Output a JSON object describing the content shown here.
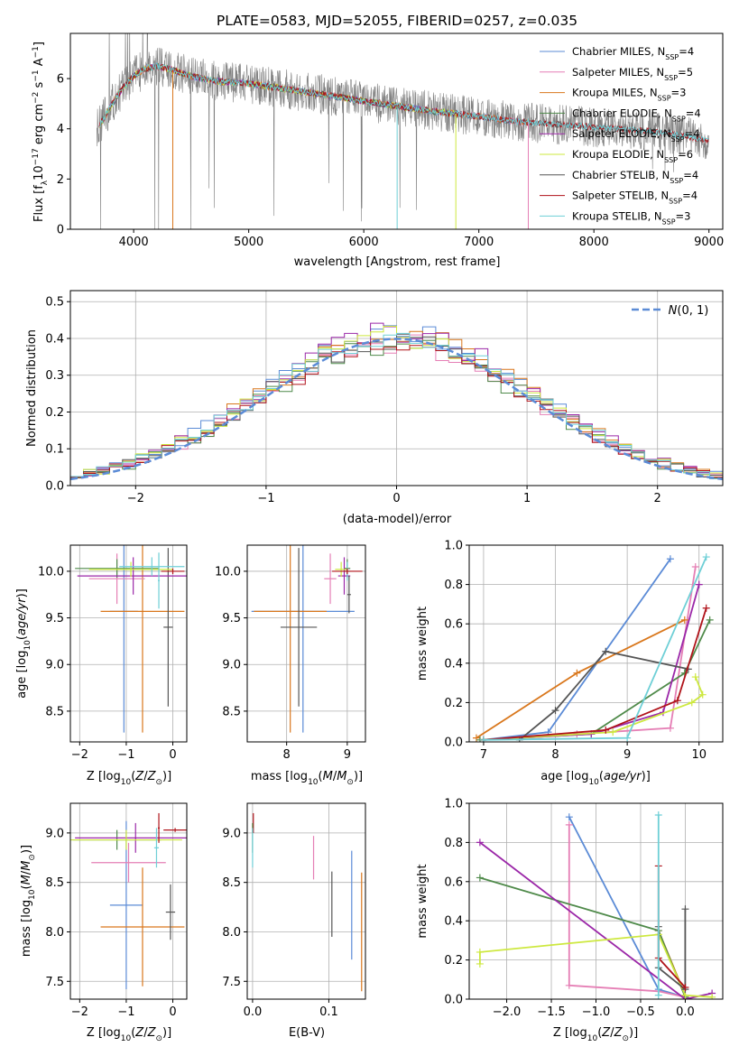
{
  "figure_title": "PLATE=0583, MJD=52055, FIBERID=0257, z=0.035",
  "colors": {
    "chabrier_miles": "#5b8bd6",
    "salpeter_miles": "#e57fb5",
    "kroupa_miles": "#d9771c",
    "chabrier_elodie": "#4f8a4a",
    "salpeter_elodie": "#9b27a8",
    "kroupa_elodie": "#cde83e",
    "chabrier_stelib": "#555555",
    "salpeter_stelib": "#b0131a",
    "kroupa_stelib": "#6ecfd6",
    "data": "#808080",
    "normal": "#5b8bd6",
    "grid": "#b0b0b0"
  },
  "chart_data": [
    {
      "type": "line",
      "title": "PLATE=0583, MJD=52055, FIBERID=0257, z=0.035",
      "xlabel": "wavelength [Angstrom, rest frame]",
      "ylabel": "Flux [f_λ 10^-17 erg cm^-2 s^-1 A^-1]",
      "xlim": [
        3450,
        9120
      ],
      "ylim": [
        0,
        7.8
      ],
      "xticks": [
        4000,
        5000,
        6000,
        7000,
        8000,
        9000
      ],
      "yticks": [
        0,
        2,
        4,
        6
      ],
      "grid": false,
      "legend_position": "top-right",
      "legend": [
        {
          "key": "chabrier_miles",
          "base": "Chabrier MILES, N",
          "sub": "SSP",
          "suffix": "=4"
        },
        {
          "key": "salpeter_miles",
          "base": "Salpeter MILES, N",
          "sub": "SSP",
          "suffix": "=5"
        },
        {
          "key": "kroupa_miles",
          "base": "Kroupa MILES, N",
          "sub": "SSP",
          "suffix": "=3"
        },
        {
          "key": "chabrier_elodie",
          "base": "Chabrier ELODIE, N",
          "sub": "SSP",
          "suffix": "=4"
        },
        {
          "key": "salpeter_elodie",
          "base": "Salpeter ELODIE, N",
          "sub": "SSP",
          "suffix": "=4"
        },
        {
          "key": "kroupa_elodie",
          "base": "Kroupa ELODIE, N",
          "sub": "SSP",
          "suffix": "=6"
        },
        {
          "key": "chabrier_stelib",
          "base": "Chabrier STELIB, N",
          "sub": "SSP",
          "suffix": "=4"
        },
        {
          "key": "salpeter_stelib",
          "base": "Salpeter STELIB, N",
          "sub": "SSP",
          "suffix": "=4"
        },
        {
          "key": "kroupa_stelib",
          "base": "Kroupa STELIB, N",
          "sub": "SSP",
          "suffix": "=3"
        }
      ],
      "model_continuum": {
        "x": [
          3700,
          3800,
          3900,
          4000,
          4100,
          4200,
          4300,
          4500,
          4700,
          5000,
          5300,
          5600,
          6000,
          6300,
          6600,
          7000,
          7300,
          7600,
          7900,
          8200,
          8500,
          8800,
          9000
        ],
        "y": [
          4.1,
          4.9,
          5.6,
          6.1,
          6.4,
          6.5,
          6.4,
          6.1,
          5.9,
          5.8,
          5.6,
          5.4,
          5.1,
          4.9,
          4.7,
          4.5,
          4.3,
          4.2,
          4.1,
          4.0,
          3.9,
          3.7,
          3.5
        ]
      },
      "model_ranges": {
        "chabrier_miles": [
          3700,
          7430
        ],
        "salpeter_miles": [
          3700,
          7430
        ],
        "kroupa_miles": [
          3700,
          7430
        ],
        "chabrier_elodie": [
          3700,
          6800
        ],
        "salpeter_elodie": [
          3700,
          6800
        ],
        "kroupa_elodie": [
          3700,
          6800
        ],
        "chabrier_stelib": [
          3700,
          9000
        ],
        "salpeter_stelib": [
          3700,
          9000
        ],
        "kroupa_stelib": [
          3700,
          9000
        ]
      },
      "model_drops": [
        {
          "key": "kroupa_miles",
          "x": 4340
        },
        {
          "key": "kroupa_stelib",
          "x": 6290
        },
        {
          "key": "kroupa_elodie",
          "x": 6800
        },
        {
          "key": "salpeter_miles",
          "x": 7430
        }
      ]
    },
    {
      "type": "histogram",
      "xlabel": "(data-model)/error",
      "ylabel": "Normed distribution",
      "xlim": [
        -2.5,
        2.5
      ],
      "ylim": [
        0,
        0.53
      ],
      "xticks": [
        -2,
        -1,
        0,
        1,
        2
      ],
      "yticks": [
        0.0,
        0.1,
        0.2,
        0.3,
        0.4,
        0.5
      ],
      "grid": true,
      "legend_position": "top-right",
      "legend": [
        {
          "label": "N(0, 1)",
          "style": "dashed",
          "key": "normal"
        }
      ],
      "bin_width": 0.1,
      "spread": [
        0.04,
        -0.03,
        0.03,
        -0.05,
        0.05,
        0.02,
        -0.02,
        -0.04,
        0.01
      ]
    },
    {
      "type": "errorbar",
      "xlabel": "Z [log10(Z/Z⊙)]",
      "ylabel": "age [log10(age/yr)]",
      "xlim": [
        -2.2,
        0.3
      ],
      "ylim": [
        8.17,
        10.28
      ],
      "xticks": [
        -2,
        -1,
        0
      ],
      "yticks": [
        8.5,
        9.0,
        9.5,
        10.0
      ],
      "grid": true,
      "points": [
        {
          "key": "chabrier_miles",
          "x": -1.05,
          "xerr": 0.3,
          "y": 9.57,
          "yerr": 1.3
        },
        {
          "key": "kroupa_miles",
          "x": -0.65,
          "xerr": 0.9,
          "y": 9.57,
          "yerr": 1.3
        },
        {
          "key": "chabrier_stelib",
          "x": -0.1,
          "xerr": 0.1,
          "y": 9.4,
          "yerr": 0.85
        },
        {
          "key": "salpeter_miles",
          "x": -1.2,
          "xerr": 0.6,
          "y": 9.92,
          "yerr": 0.27
        },
        {
          "key": "chabrier_elodie",
          "x": -1.2,
          "xerr": 0.9,
          "y": 10.03,
          "yerr": 0.1
        },
        {
          "key": "salpeter_elodie",
          "x": -0.85,
          "xerr": 1.2,
          "y": 9.95,
          "yerr": 0.2
        },
        {
          "key": "kroupa_elodie",
          "x": -0.9,
          "xerr": 0.9,
          "y": 10.02,
          "yerr": 0.08
        },
        {
          "key": "kroupa_stelib",
          "x": -0.45,
          "xerr": 0.7,
          "y": 10.05,
          "yerr": 0.1
        },
        {
          "key": "salpeter_stelib",
          "x": 0.0,
          "xerr": 0.25,
          "y": 10.0,
          "yerr": 0.03
        },
        {
          "key": "kroupa_stelib",
          "x": -0.3,
          "xerr": 0.02,
          "y": 9.9,
          "yerr": 0.3
        }
      ]
    },
    {
      "type": "errorbar",
      "xlabel": "mass [log10(M/M⊙)]",
      "ylabel": "",
      "xlim": [
        7.35,
        9.3
      ],
      "ylim": [
        8.17,
        10.28
      ],
      "xticks": [
        8,
        9
      ],
      "yticks": [
        8.5,
        9.0,
        9.5,
        10.0
      ],
      "grid": true,
      "points": [
        {
          "key": "chabrier_miles",
          "x": 8.27,
          "xerr": 0.85,
          "y": 9.57,
          "yerr": 1.3
        },
        {
          "key": "kroupa_miles",
          "x": 8.06,
          "xerr": 0.6,
          "y": 9.57,
          "yerr": 1.3
        },
        {
          "key": "chabrier_stelib",
          "x": 8.2,
          "xerr": 0.3,
          "y": 9.4,
          "yerr": 0.85
        },
        {
          "key": "salpeter_miles",
          "x": 8.72,
          "xerr": 0.1,
          "y": 9.92,
          "yerr": 0.27
        },
        {
          "key": "chabrier_elodie",
          "x": 9.0,
          "xerr": 0.05,
          "y": 10.03,
          "yerr": 0.1
        },
        {
          "key": "salpeter_elodie",
          "x": 8.95,
          "xerr": 0.1,
          "y": 9.95,
          "yerr": 0.2
        },
        {
          "key": "kroupa_elodie",
          "x": 8.9,
          "xerr": 0.1,
          "y": 10.02,
          "yerr": 0.08
        },
        {
          "key": "kroupa_stelib",
          "x": 9.0,
          "xerr": 0.05,
          "y": 10.0,
          "yerr": 0.1
        },
        {
          "key": "salpeter_stelib",
          "x": 9.0,
          "xerr": 0.25,
          "y": 10.0,
          "yerr": 0.03
        },
        {
          "key": "chabrier_stelib",
          "x": 9.03,
          "xerr": 0.03,
          "y": 9.75,
          "yerr": 0.2
        }
      ]
    },
    {
      "type": "line",
      "xlabel": "age [log10(age/yr)]",
      "ylabel": "mass weight",
      "xlim": [
        6.8,
        10.33
      ],
      "ylim": [
        0,
        1.0
      ],
      "xticks": [
        7,
        8,
        9,
        10
      ],
      "yticks": [
        0.0,
        0.2,
        0.4,
        0.6,
        0.8,
        1.0
      ],
      "grid": true,
      "series": [
        {
          "key": "chabrier_miles",
          "x": [
            7.0,
            7.9,
            9.6
          ],
          "y": [
            0.01,
            0.05,
            0.93
          ]
        },
        {
          "key": "salpeter_miles",
          "x": [
            7.0,
            8.3,
            9.6,
            9.95
          ],
          "y": [
            0.01,
            0.04,
            0.07,
            0.89
          ]
        },
        {
          "key": "kroupa_miles",
          "x": [
            6.9,
            8.3,
            9.8
          ],
          "y": [
            0.02,
            0.35,
            0.62
          ]
        },
        {
          "key": "chabrier_elodie",
          "x": [
            6.95,
            8.5,
            9.8,
            10.15
          ],
          "y": [
            0.01,
            0.04,
            0.35,
            0.62
          ]
        },
        {
          "key": "salpeter_elodie",
          "x": [
            7.0,
            8.5,
            9.5,
            10.0
          ],
          "y": [
            0.01,
            0.04,
            0.15,
            0.8
          ]
        },
        {
          "key": "kroupa_elodie",
          "x": [
            7.0,
            8.8,
            9.9,
            10.05,
            9.95
          ],
          "y": [
            0.01,
            0.05,
            0.2,
            0.24,
            0.33
          ]
        },
        {
          "key": "chabrier_stelib",
          "x": [
            7.5,
            8.0,
            8.7,
            9.85
          ],
          "y": [
            0.01,
            0.16,
            0.46,
            0.37
          ]
        },
        {
          "key": "salpeter_stelib",
          "x": [
            7.0,
            8.7,
            9.7,
            10.1
          ],
          "y": [
            0.01,
            0.06,
            0.21,
            0.68
          ]
        },
        {
          "key": "kroupa_stelib",
          "x": [
            7.0,
            9.0,
            10.1
          ],
          "y": [
            0.01,
            0.02,
            0.94
          ]
        }
      ]
    },
    {
      "type": "errorbar",
      "xlabel": "Z [log10(Z/Z⊙)]",
      "ylabel": "mass [log10(M/M⊙)]",
      "xlim": [
        -2.2,
        0.3
      ],
      "ylim": [
        7.32,
        9.3
      ],
      "xticks": [
        -2,
        -1,
        0
      ],
      "yticks": [
        7.5,
        8.0,
        8.5,
        9.0
      ],
      "grid": true,
      "points": [
        {
          "key": "chabrier_miles",
          "x": -1.0,
          "xerr": 0.35,
          "y": 8.27,
          "yerr": 0.85
        },
        {
          "key": "kroupa_miles",
          "x": -0.65,
          "xerr": 0.9,
          "y": 8.05,
          "yerr": 0.6
        },
        {
          "key": "salpeter_miles",
          "x": -0.95,
          "xerr": 0.8,
          "y": 8.7,
          "yerr": 0.2
        },
        {
          "key": "chabrier_stelib",
          "x": -0.05,
          "xerr": 0.1,
          "y": 8.2,
          "yerr": 0.28
        },
        {
          "key": "chabrier_elodie",
          "x": -1.2,
          "xerr": 0.95,
          "y": 8.93,
          "yerr": 0.1
        },
        {
          "key": "salpeter_elodie",
          "x": -0.8,
          "xerr": 1.3,
          "y": 8.95,
          "yerr": 0.15
        },
        {
          "key": "kroupa_elodie",
          "x": -1.0,
          "xerr": 1.2,
          "y": 8.93,
          "yerr": 0.1
        },
        {
          "key": "kroupa_stelib",
          "x": -0.35,
          "xerr": 0.05,
          "y": 8.85,
          "yerr": 0.2
        },
        {
          "key": "salpeter_stelib",
          "x": 0.05,
          "xerr": 0.25,
          "y": 9.03,
          "yerr": 0.02
        },
        {
          "key": "salpeter_stelib",
          "x": -0.3,
          "xerr": 0.02,
          "y": 9.05,
          "yerr": 0.15
        }
      ]
    },
    {
      "type": "errorbar",
      "xlabel": "E(B-V)",
      "ylabel": "",
      "xlim": [
        -0.007,
        0.148
      ],
      "ylim": [
        7.32,
        9.3
      ],
      "xticks": [
        0.0,
        0.1
      ],
      "yticks": [
        7.5,
        8.0,
        8.5,
        9.0
      ],
      "grid": true,
      "points": [
        {
          "key": "chabrier_miles",
          "x": 0.13,
          "xerr": 0.0,
          "y": 8.27,
          "yerr": 0.55
        },
        {
          "key": "kroupa_miles",
          "x": 0.143,
          "xerr": 0.0,
          "y": 8.0,
          "yerr": 0.6
        },
        {
          "key": "salpeter_miles",
          "x": 0.08,
          "xerr": 0.0,
          "y": 8.75,
          "yerr": 0.22
        },
        {
          "key": "chabrier_stelib",
          "x": 0.104,
          "xerr": 0.0,
          "y": 8.28,
          "yerr": 0.33
        },
        {
          "key": "salpeter_stelib",
          "x": 0.001,
          "xerr": 0.0,
          "y": 9.1,
          "yerr": 0.1
        },
        {
          "key": "chabrier_elodie",
          "x": 0.0,
          "xerr": 0.0,
          "y": 8.95,
          "yerr": 0.15
        },
        {
          "key": "kroupa_stelib",
          "x": 0.0,
          "xerr": 0.0,
          "y": 8.85,
          "yerr": 0.2
        }
      ]
    },
    {
      "type": "line",
      "xlabel": "Z [log10(Z/Z⊙)]",
      "ylabel": "mass weight",
      "xlim": [
        -2.42,
        0.42
      ],
      "ylim": [
        0,
        1.0
      ],
      "xticks": [
        -2.0,
        -1.5,
        -1.0,
        -0.5,
        0.0
      ],
      "yticks": [
        0.0,
        0.2,
        0.4,
        0.6,
        0.8,
        1.0
      ],
      "grid": true,
      "series": [
        {
          "key": "chabrier_miles",
          "x": [
            -1.3,
            -0.3,
            0.0
          ],
          "y": [
            0.93,
            0.05,
            0.01
          ]
        },
        {
          "key": "salpeter_miles",
          "x": [
            -1.3,
            -1.3,
            -0.3,
            0.0
          ],
          "y": [
            0.89,
            0.07,
            0.04,
            0.01
          ]
        },
        {
          "key": "kroupa_miles",
          "x": [
            -0.3,
            0.0
          ],
          "y": [
            0.35,
            0.02
          ]
        },
        {
          "key": "chabrier_elodie",
          "x": [
            -2.3,
            -0.3,
            0.0
          ],
          "y": [
            0.62,
            0.35,
            0.01
          ]
        },
        {
          "key": "salpeter_elodie",
          "x": [
            -2.3,
            0.0,
            0.3
          ],
          "y": [
            0.8,
            0.0,
            0.03
          ]
        },
        {
          "key": "kroupa_elodie",
          "x": [
            -2.3,
            -2.3,
            -0.3,
            0.0,
            0.3
          ],
          "y": [
            0.18,
            0.24,
            0.33,
            0.02,
            0.01
          ]
        },
        {
          "key": "chabrier_stelib",
          "x": [
            0.0,
            0.0,
            -0.3,
            -0.3
          ],
          "y": [
            0.46,
            0.05,
            0.16,
            0.37
          ]
        },
        {
          "key": "salpeter_stelib",
          "x": [
            -0.3,
            -0.3,
            0.0
          ],
          "y": [
            0.68,
            0.21,
            0.06
          ]
        },
        {
          "key": "kroupa_stelib",
          "x": [
            -0.3,
            -0.3
          ],
          "y": [
            0.94,
            0.02
          ]
        }
      ]
    }
  ]
}
